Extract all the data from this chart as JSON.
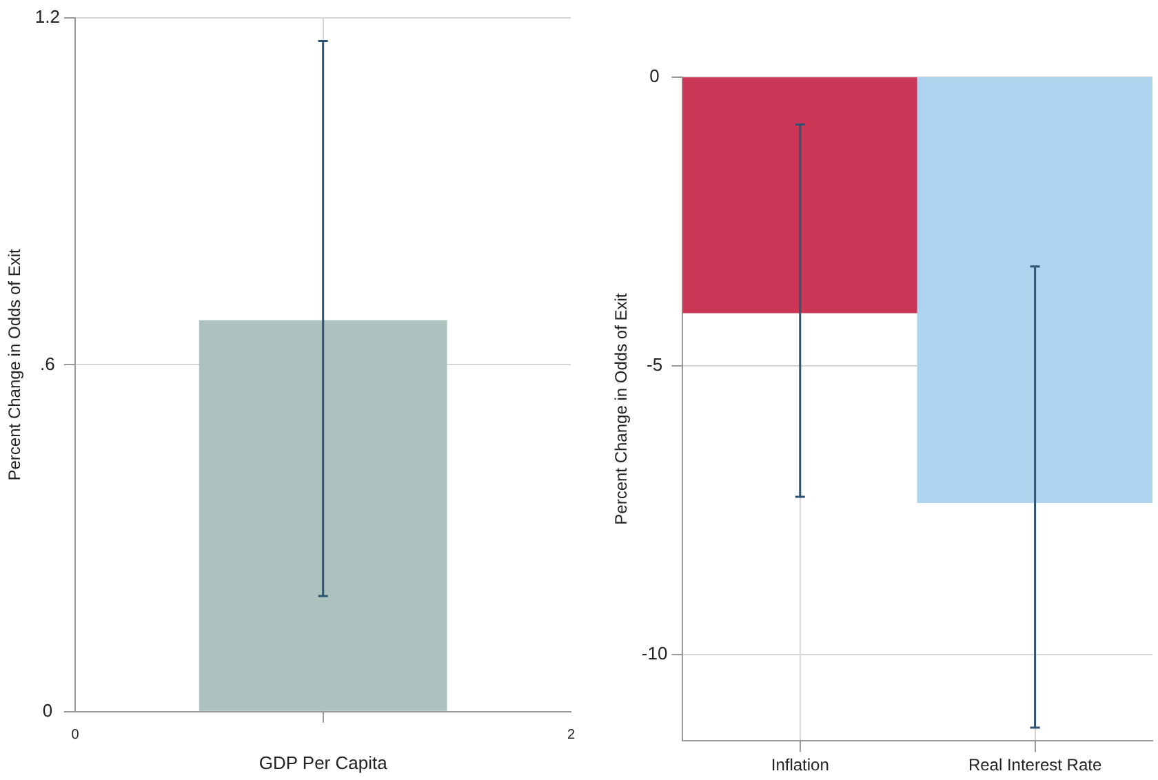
{
  "chart_data": [
    {
      "type": "bar",
      "x": [
        1
      ],
      "values": [
        0.677
      ],
      "errors": [
        [
          0.2,
          1.16
        ]
      ],
      "color": "#abc2bf",
      "xlim": [
        0,
        2
      ],
      "xticks": [
        0,
        2
      ],
      "ylim": [
        0,
        1.2
      ],
      "yticks": [
        0,
        {
          "value": 0.6,
          "label": ".6"
        },
        1.2
      ],
      "xlabel": "GDP Per Capita",
      "ylabel": "Percent Change in Odds of Exit",
      "grid": true
    },
    {
      "type": "bar",
      "categories": [
        "Inflation",
        "Real Interest Rate"
      ],
      "values": [
        -4.08,
        -7.37
      ],
      "errors": [
        [
          -7.27,
          -0.82
        ],
        [
          -11.27,
          -3.28
        ]
      ],
      "colors": [
        "#cc3657",
        "#aed5ef"
      ],
      "ylim": [
        -11.5,
        0
      ],
      "yticks": [
        -10,
        -5,
        0
      ],
      "ylabel": "Percent Change in Odds of Exit",
      "grid": true
    }
  ]
}
